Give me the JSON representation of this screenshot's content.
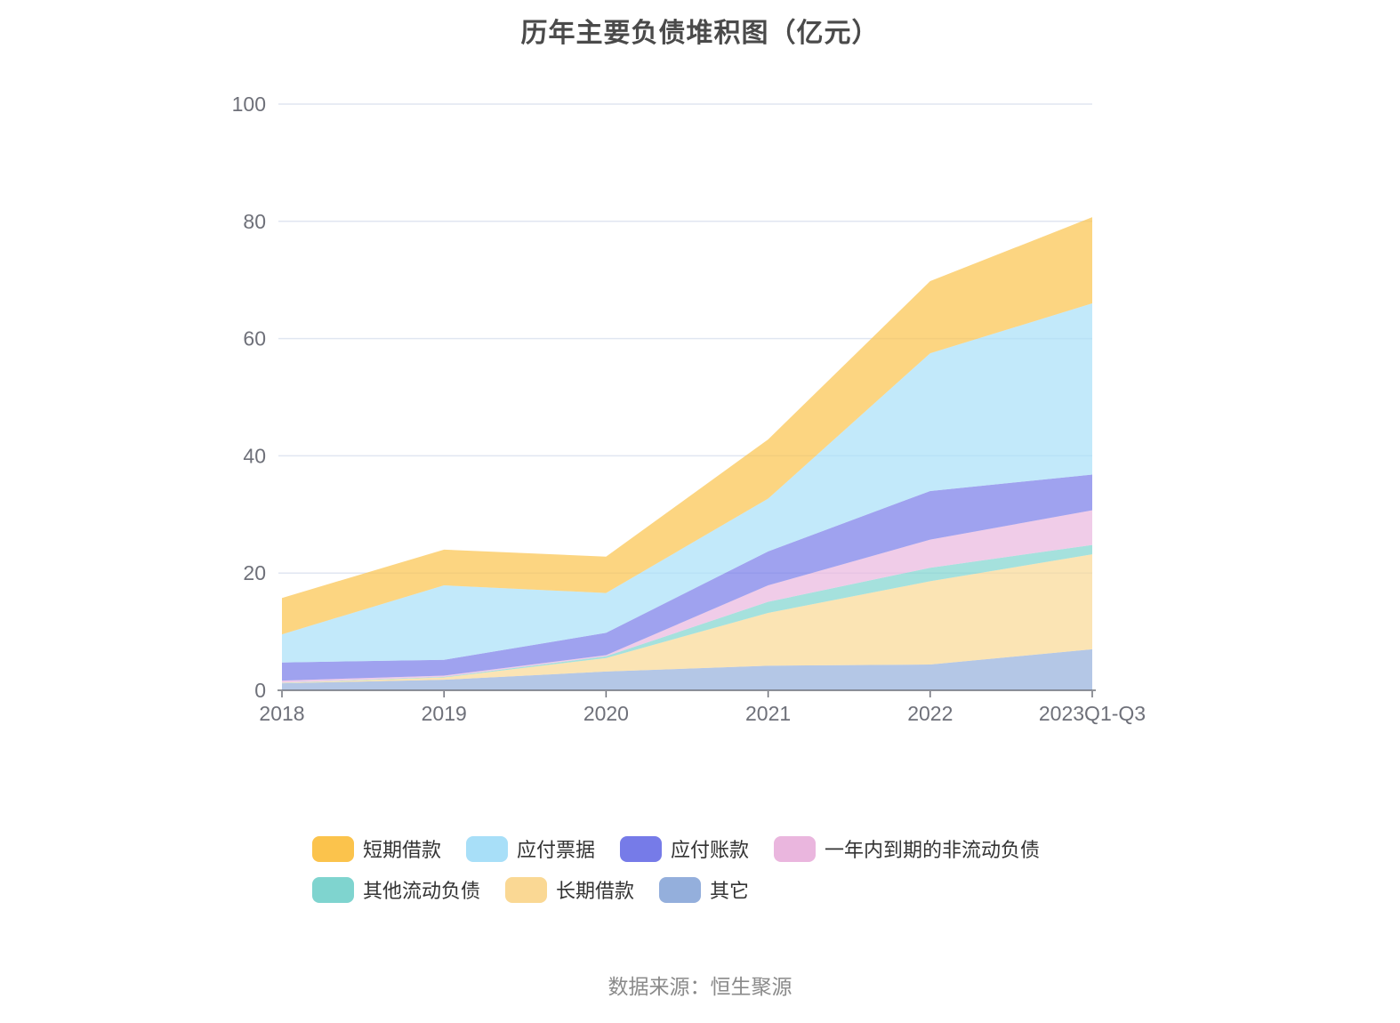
{
  "title": "历年主要负债堆积图（亿元）",
  "footer": "数据来源：恒生聚源",
  "axis_color": "#6e7079",
  "grid_color": "#e0e6f1",
  "chart_data": {
    "type": "area",
    "stacked": true,
    "title": "历年主要负债堆积图（亿元）",
    "xlabel": "",
    "ylabel": "",
    "ylim": [
      0,
      100
    ],
    "y_ticks": [
      0,
      20,
      40,
      60,
      80,
      100
    ],
    "grid": true,
    "legend_position": "bottom",
    "categories": [
      "2018",
      "2019",
      "2020",
      "2021",
      "2022",
      "2023Q1-Q3"
    ],
    "series": [
      {
        "name": "短期借款",
        "color": "#fbc34c",
        "values": [
          6.2,
          6.1,
          6.2,
          10.1,
          12.3,
          14.7
        ]
      },
      {
        "name": "应付票据",
        "color": "#a8dff8",
        "values": [
          4.8,
          12.7,
          6.8,
          9.0,
          23.5,
          29.2
        ]
      },
      {
        "name": "应付账款",
        "color": "#767be8",
        "values": [
          3.1,
          2.7,
          3.8,
          5.8,
          8.3,
          6.1
        ]
      },
      {
        "name": "一年内到期的非流动负债",
        "color": "#eab6de",
        "values": [
          0.35,
          0.2,
          0.2,
          2.8,
          4.8,
          5.9
        ]
      },
      {
        "name": "其他流动负债",
        "color": "#7fd4cf",
        "values": [
          0.05,
          0.1,
          0.3,
          1.9,
          2.3,
          1.6
        ]
      },
      {
        "name": "长期借款",
        "color": "#fad894",
        "values": [
          0.05,
          0.4,
          2.3,
          9.0,
          14.2,
          16.2
        ]
      },
      {
        "name": "其它",
        "color": "#94afdc",
        "values": [
          1.2,
          1.8,
          3.2,
          4.2,
          4.4,
          7.0
        ]
      }
    ],
    "stack_note": "stacking bottom-to-top is the reverse of the series/legend order",
    "totals": [
      15.75,
      24.0,
      22.8,
      42.8,
      69.8,
      80.7
    ]
  }
}
